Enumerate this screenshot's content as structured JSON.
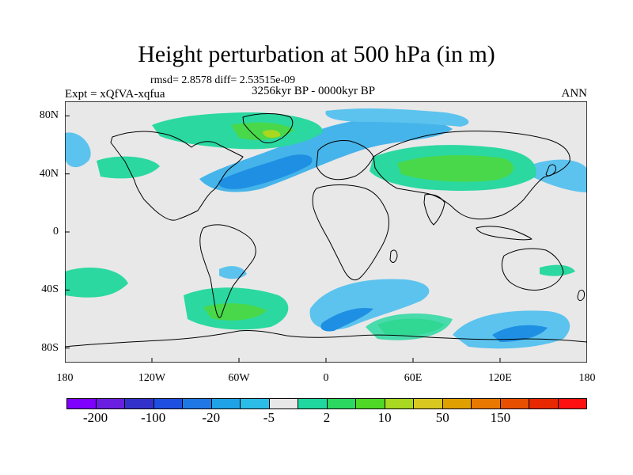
{
  "title": "Height perturbation at 500 hPa (in m)",
  "stats": "rmsd= 2.8578 diff= 2.53515e-09",
  "left_label": "Expt = xQfVA-xqfua",
  "center_label": "3256kyr BP - 0000kyr BP",
  "right_label": "ANN",
  "map": {
    "projection": "cylindrical-equidistant",
    "lon_range": [
      -180,
      180
    ],
    "lat_range": [
      -90,
      90
    ],
    "background_color": "#e8e8e8",
    "coastline_color": "#000000",
    "lat_ticks": [
      {
        "value": 80,
        "label": "80N"
      },
      {
        "value": 40,
        "label": "40N"
      },
      {
        "value": 0,
        "label": "0"
      },
      {
        "value": -40,
        "label": "40S"
      },
      {
        "value": -80,
        "label": "80S"
      }
    ],
    "lon_ticks": [
      {
        "value": -180,
        "label": "180"
      },
      {
        "value": -120,
        "label": "120W"
      },
      {
        "value": -60,
        "label": "60W"
      },
      {
        "value": 0,
        "label": "0"
      },
      {
        "value": 60,
        "label": "60E"
      },
      {
        "value": 120,
        "label": "120E"
      },
      {
        "value": 180,
        "label": "180"
      }
    ]
  },
  "colorbar": {
    "colors": [
      "#7f00ff",
      "#6a1fe0",
      "#3333cc",
      "#1f4fe0",
      "#1f78e6",
      "#1fa2e6",
      "#2bbde8",
      "#e8e8e8",
      "#1fd8a0",
      "#2bd860",
      "#4fd826",
      "#a8d81f",
      "#d8c81f",
      "#e0a000",
      "#e87800",
      "#e85000",
      "#e82800",
      "#ff1010"
    ],
    "labels": [
      {
        "text": "-200",
        "boundary": 1
      },
      {
        "text": "-100",
        "boundary": 3
      },
      {
        "text": "-20",
        "boundary": 5
      },
      {
        "text": "-5",
        "boundary": 7
      },
      {
        "text": "2",
        "boundary": 9
      },
      {
        "text": "10",
        "boundary": 11
      },
      {
        "text": "50",
        "boundary": 13
      },
      {
        "text": "150",
        "boundary": 15
      }
    ]
  }
}
